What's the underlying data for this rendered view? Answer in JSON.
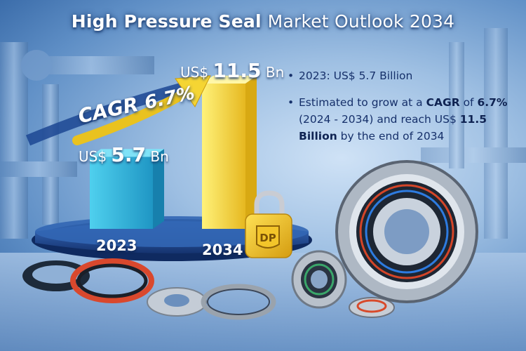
{
  "title": {
    "part1": "High Pressure Seal",
    "part2": "Market Outlook 2034"
  },
  "chart": {
    "cagr_text": "CAGR",
    "cagr_value": "6.7%",
    "bars": [
      {
        "year": "2023",
        "currency": "US$",
        "value": "5.7",
        "unit": "Bn",
        "amount": 5.7
      },
      {
        "year": "2034",
        "currency": "US$",
        "value": "11.5",
        "unit": "Bn",
        "amount": 11.5
      }
    ]
  },
  "info": {
    "line1": "2023: US$ 5.7 Billion",
    "line2_pre": "Estimated to grow at a ",
    "line2_b1": "CAGR",
    "line2_mid": " of ",
    "line2_b2": "6.7%",
    "line2_post": " (2024 - 2034) and reach US$ ",
    "line2_b3": "11.5 Billion",
    "line2_end": " by the end of 2034"
  },
  "colors": {
    "bar_2023": "#2bb0d4",
    "bar_2034": "#f2cf2a",
    "navy": "#1b3a7a"
  }
}
